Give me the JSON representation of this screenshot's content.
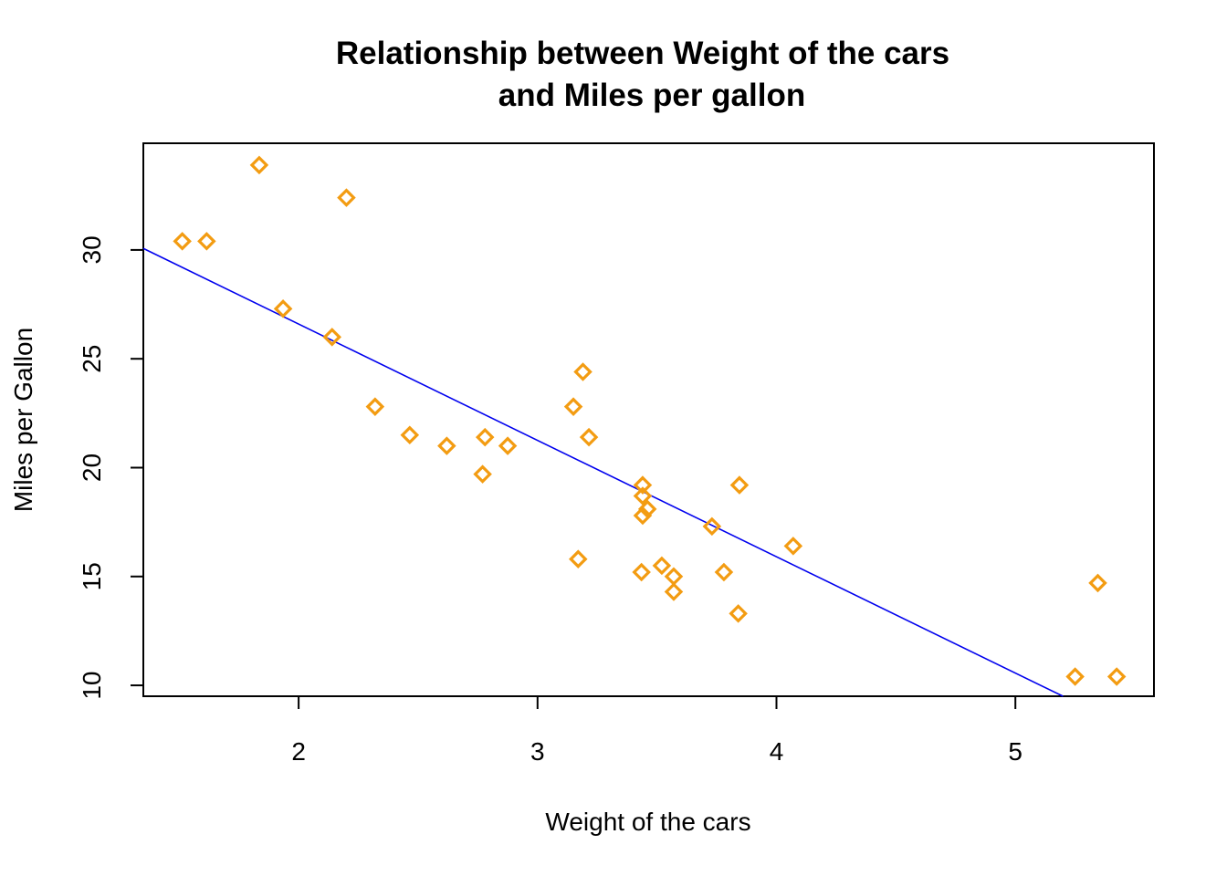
{
  "chart_data": {
    "type": "scatter",
    "title_lines": [
      "Relationship between Weight of the cars",
      "and Miles per gallon"
    ],
    "xlabel": "Weight of the cars",
    "ylabel": "Miles per Gallon",
    "xlim": [
      1.35,
      5.58
    ],
    "ylim": [
      9.5,
      34.9
    ],
    "x_ticks": [
      2,
      3,
      4,
      5
    ],
    "y_ticks": [
      10,
      15,
      20,
      25,
      30
    ],
    "x_tick_labels": [
      "2",
      "3",
      "4",
      "5"
    ],
    "y_tick_labels": [
      "10",
      "15",
      "20",
      "25",
      "30"
    ],
    "grid": false,
    "legend": false,
    "point_shape": "diamond",
    "point_color": "#F39C12",
    "line_color": "#0000EE",
    "regression_line": {
      "intercept": 37.285,
      "slope": -5.344
    },
    "points": [
      {
        "x": 2.62,
        "y": 21.0
      },
      {
        "x": 2.875,
        "y": 21.0
      },
      {
        "x": 2.32,
        "y": 22.8
      },
      {
        "x": 3.215,
        "y": 21.4
      },
      {
        "x": 3.44,
        "y": 18.7
      },
      {
        "x": 3.46,
        "y": 18.1
      },
      {
        "x": 3.57,
        "y": 14.3
      },
      {
        "x": 3.19,
        "y": 24.4
      },
      {
        "x": 3.15,
        "y": 22.8
      },
      {
        "x": 3.44,
        "y": 19.2
      },
      {
        "x": 3.44,
        "y": 17.8
      },
      {
        "x": 4.07,
        "y": 16.4
      },
      {
        "x": 3.73,
        "y": 17.3
      },
      {
        "x": 3.78,
        "y": 15.2
      },
      {
        "x": 5.25,
        "y": 10.4
      },
      {
        "x": 5.424,
        "y": 10.4
      },
      {
        "x": 5.345,
        "y": 14.7
      },
      {
        "x": 2.2,
        "y": 32.4
      },
      {
        "x": 1.615,
        "y": 30.4
      },
      {
        "x": 1.835,
        "y": 33.9
      },
      {
        "x": 2.465,
        "y": 21.5
      },
      {
        "x": 3.52,
        "y": 15.5
      },
      {
        "x": 3.435,
        "y": 15.2
      },
      {
        "x": 3.84,
        "y": 13.3
      },
      {
        "x": 3.845,
        "y": 19.2
      },
      {
        "x": 1.935,
        "y": 27.3
      },
      {
        "x": 2.14,
        "y": 26.0
      },
      {
        "x": 1.513,
        "y": 30.4
      },
      {
        "x": 3.17,
        "y": 15.8
      },
      {
        "x": 2.77,
        "y": 19.7
      },
      {
        "x": 3.57,
        "y": 15.0
      },
      {
        "x": 2.78,
        "y": 21.4
      }
    ]
  }
}
